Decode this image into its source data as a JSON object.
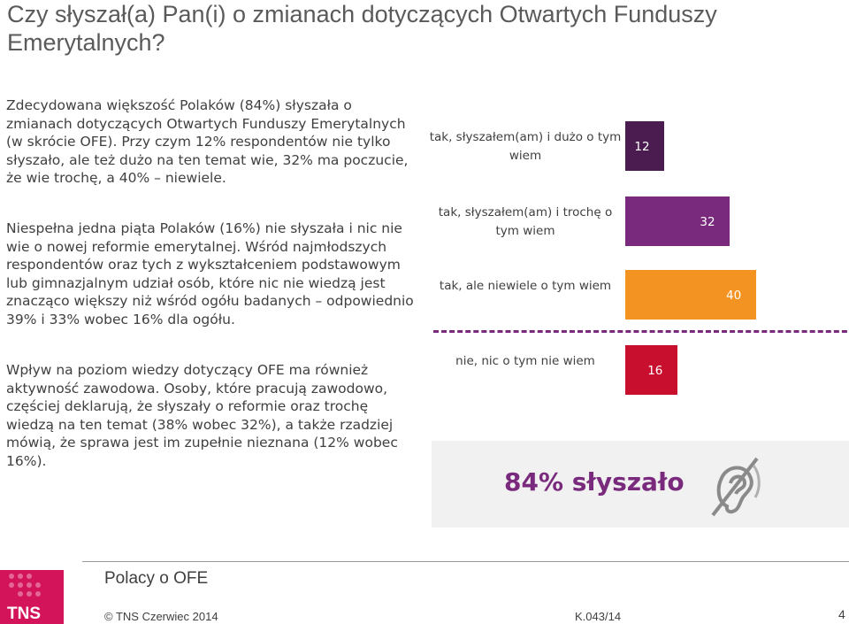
{
  "page": {
    "title": "Czy słyszał(a) Pan(i) o zmianach dotyczących Otwartych Funduszy Emerytalnych?",
    "paragraphs": [
      "Zdecydowana większość Polaków (84%) słyszała o zmianach dotyczących Otwartych Funduszy Emerytalnych (w skrócie OFE). Przy czym 12% respondentów nie tylko słyszało, ale też dużo na ten temat wie, 32% ma poczucie, że wie trochę, a 40% – niewiele.",
      "Niespełna jedna piąta Polaków (16%) nie słyszała i nic nie wie o nowej reformie emerytalnej. Wśród najmłodszych respondentów oraz tych z wykształceniem podstawowym lub gimnazjalnym udział osób, które nic nie wiedzą jest znacząco większy niż wśród ogółu badanych – odpowiednio 39% i 33% wobec 16% dla ogółu.",
      "Wpływ na poziom wiedzy dotyczący OFE ma również aktywność zawodowa. Osoby, które pracują zawodowo, częściej deklarują, że słyszały o reformie oraz trochę wiedzą na ten temat (38% wobec 32%), a także rzadziej mówią, że sprawa jest im zupełnie nieznana (12% wobec 16%)."
    ]
  },
  "chart_data": {
    "type": "bar",
    "orientation": "horizontal",
    "categories": [
      "tak, słyszałem(am) i dużo o tym wiem",
      "tak, słyszałem(am) i trochę o tym wiem",
      "tak, ale niewiele o tym wiem",
      "nie, nic o tym nie wiem"
    ],
    "values": [
      12,
      32,
      40,
      16
    ],
    "colors": [
      "#4b1c4f",
      "#7a2a7d",
      "#f39322",
      "#c8102e"
    ],
    "summary": "84% słyszało"
  },
  "footer": {
    "logo": "TNS",
    "title": "Polacy o OFE",
    "copyright": "© TNS Czerwiec 2014",
    "code": "K.043/14",
    "page_number": "4"
  },
  "icons": {
    "ear": "ear-icon",
    "logo": "tns-logo"
  }
}
